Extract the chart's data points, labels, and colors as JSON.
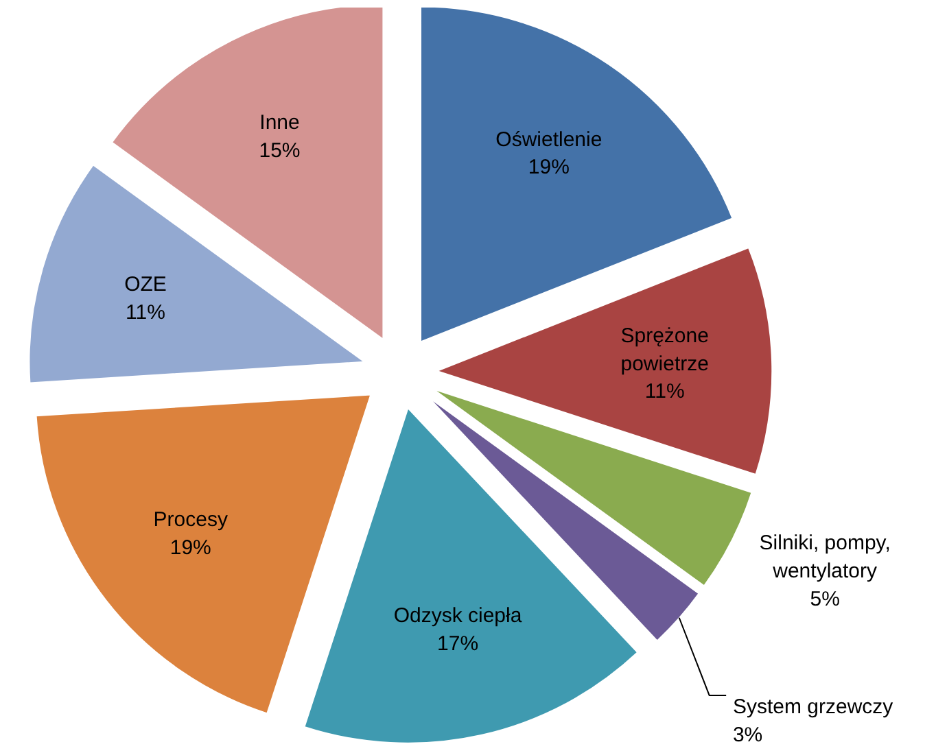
{
  "chart_data": {
    "type": "pie",
    "categories": [
      "Oświetlenie",
      "Sprężone powietrze",
      "Silniki, pompy, wentylatory",
      "System grzewczy",
      "Odzysk ciepła",
      "Procesy",
      "OZE",
      "Inne"
    ],
    "values": [
      19,
      11,
      5,
      3,
      17,
      19,
      11,
      15
    ],
    "colors": [
      "#4472a8",
      "#a94442",
      "#8aab4f",
      "#6b5a96",
      "#3f9ab0",
      "#dc823d",
      "#93a9d1",
      "#d49492"
    ],
    "value_labels": [
      "19%",
      "11%",
      "5%",
      "3%",
      "17%",
      "19%",
      "11%",
      "15%"
    ]
  }
}
